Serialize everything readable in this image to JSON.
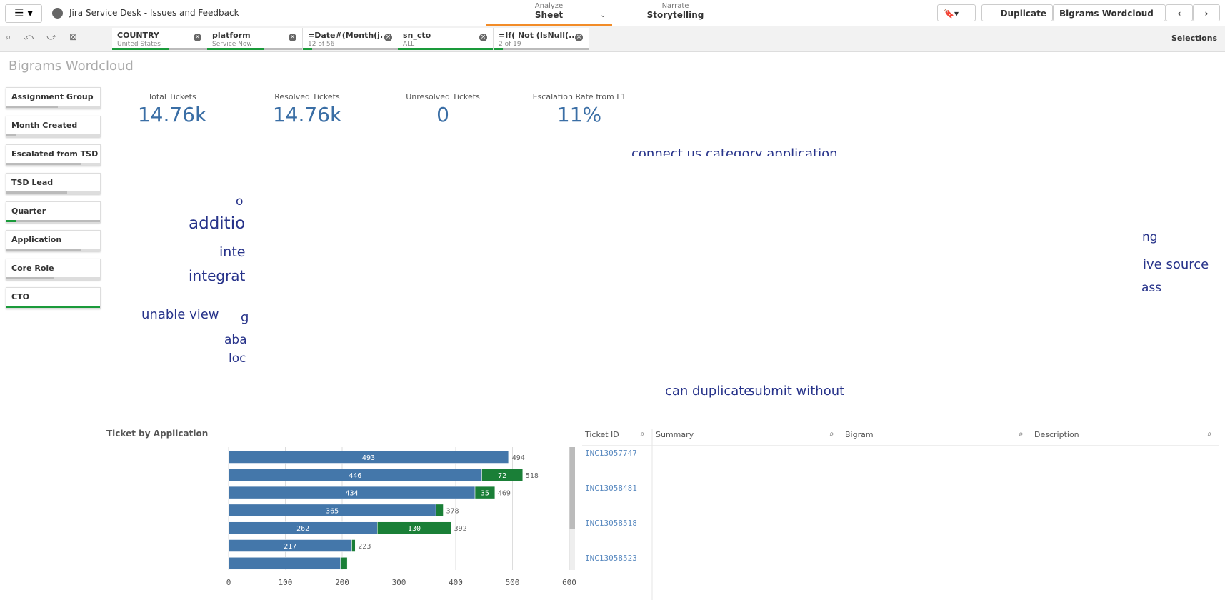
{
  "header": {
    "app_title": "Jira Service Desk - Issues and Feedback",
    "tabs": [
      {
        "label": "Analyze",
        "value": "Sheet"
      },
      {
        "label": "Narrate",
        "value": "Storytelling"
      }
    ],
    "buttons": [
      "Duplicate",
      "Bigrams Wordcloud"
    ]
  },
  "selections_bar": {
    "chips": [
      {
        "field": "COUNTRY",
        "value": "United States"
      },
      {
        "field": "platform",
        "value": "Service Now"
      },
      {
        "field": "=Date#(Month(j...",
        "value": "12 of 56"
      },
      {
        "field": "sn_cto",
        "value": "ALL"
      },
      {
        "field": "=If( Not (IsNull(...",
        "value": "2 of 19"
      }
    ],
    "selections_label": "Selections"
  },
  "sheet_title": "Bigrams Wordcloud",
  "filter_panes": [
    "Assignment Group",
    "Month Created",
    "Escalated from TSD",
    "TSD Lead",
    "Quarter",
    "Application",
    "Core Role",
    "CTO"
  ],
  "kpis": [
    {
      "label": "Total Tickets",
      "value": "14.76k"
    },
    {
      "label": "Resolved Tickets",
      "value": "14.76k"
    },
    {
      "label": "Unresolved Tickets",
      "value": "0"
    },
    {
      "label": "Escalation Rate from L1",
      "value": "11%"
    }
  ],
  "wordcloud": {
    "words": [
      "connect us category application",
      "o",
      "additio",
      "inte",
      "integrat",
      "unable view",
      "g",
      "aba",
      "loc",
      "ng",
      "ive source",
      "ass",
      "can duplicate",
      "submit without"
    ]
  },
  "chart_data": {
    "type": "bar",
    "title": "Ticket by Application",
    "orientation": "horizontal",
    "stacked": true,
    "categories": [
      null,
      null,
      null,
      null,
      null,
      null,
      null
    ],
    "series": [
      {
        "color": "#4477aa",
        "values": [
          493,
          446,
          434,
          365,
          262,
          217,
          197
        ],
        "value_labels": [
          "493",
          "446",
          "434",
          "365",
          "262",
          "217",
          null
        ]
      },
      {
        "color": "#1a7f37",
        "values": [
          1,
          72,
          35,
          13,
          130,
          6,
          12
        ],
        "value_labels": [
          null,
          "72",
          "35",
          null,
          "130",
          null,
          null
        ]
      }
    ],
    "totals": [
      494,
      518,
      469,
      378,
      392,
      223,
      null
    ],
    "xlim": [
      0,
      600
    ],
    "xticks": [
      0,
      100,
      200,
      300,
      400,
      500,
      600
    ],
    "grid": true
  },
  "table": {
    "columns": [
      "Ticket ID",
      "Summary",
      "Bigram",
      "Description"
    ],
    "rows": [
      [
        "INC13057747"
      ],
      [
        "INC13058481"
      ],
      [
        "INC13058518"
      ],
      [
        "INC13058523"
      ]
    ]
  }
}
